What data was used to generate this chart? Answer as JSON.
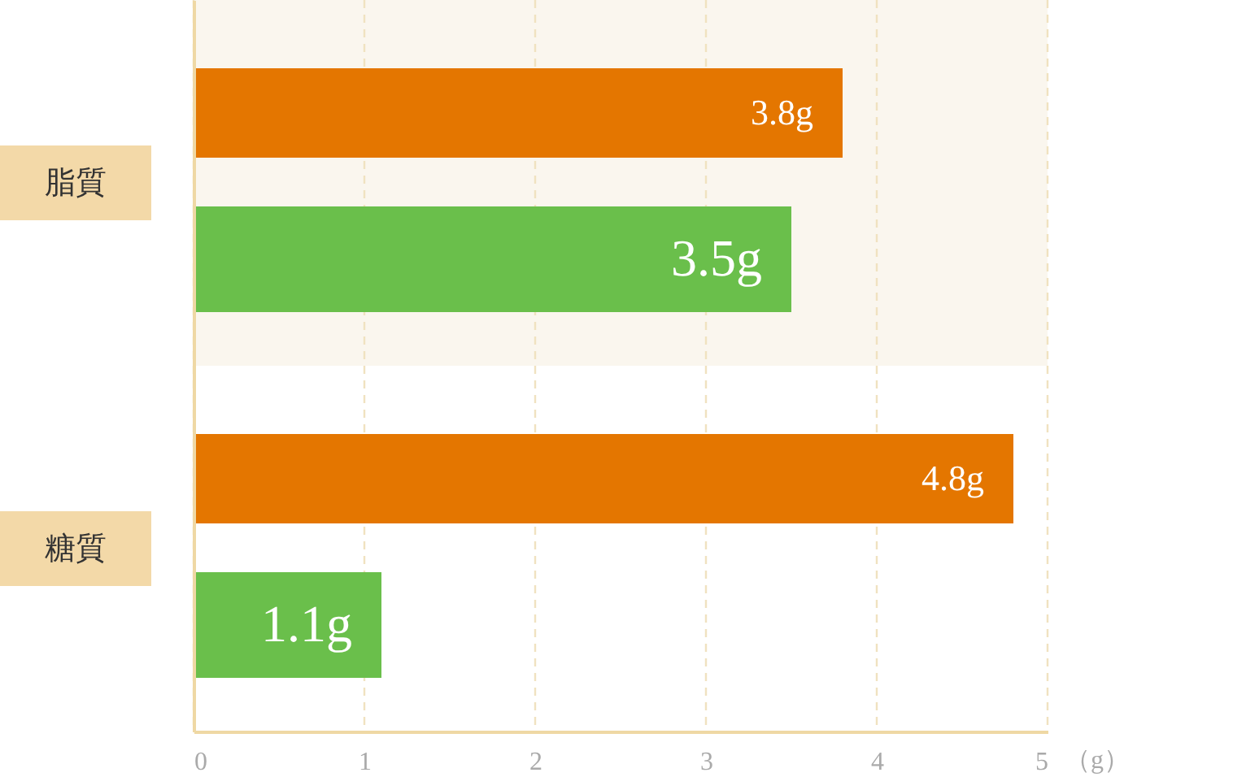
{
  "chart_data": {
    "type": "bar",
    "orientation": "horizontal",
    "categories": [
      "脂質",
      "糖質"
    ],
    "series": [
      {
        "color": "#e47600",
        "values": [
          3.8,
          4.8
        ],
        "value_labels": [
          "3.8g",
          "4.8g"
        ]
      },
      {
        "color": "#6abf4b",
        "values": [
          3.5,
          1.1
        ],
        "value_labels": [
          "3.5g",
          "1.1g"
        ]
      }
    ],
    "xlabel": "（g）",
    "xlim": [
      0,
      5
    ],
    "xticks": [
      0,
      1,
      2,
      3,
      4,
      5
    ],
    "grid": "x",
    "bands": [
      {
        "axis": "y",
        "from": "脂質",
        "to": "脂質",
        "color": "#faf6ee"
      }
    ]
  }
}
